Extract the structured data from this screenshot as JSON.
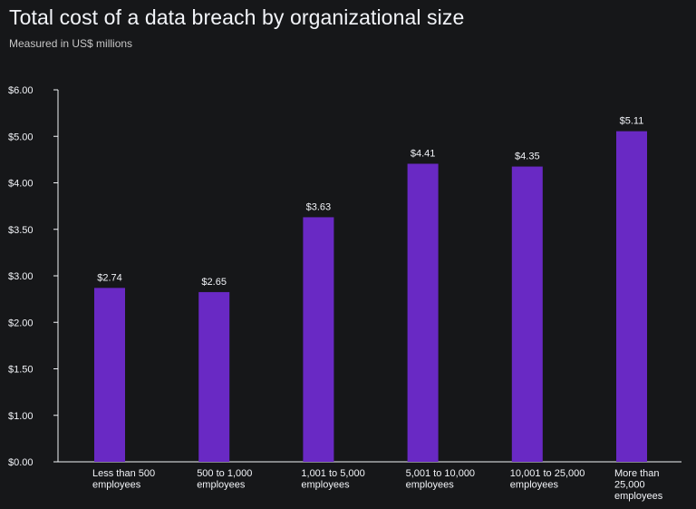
{
  "chart_data": {
    "type": "bar",
    "title": "Total cost of a data breach by organizational size",
    "subtitle": "Measured in US$ millions",
    "categories": [
      [
        "Less than 500",
        "employees"
      ],
      [
        "500 to 1,000",
        "employees"
      ],
      [
        "1,001 to 5,000",
        "employees"
      ],
      [
        "5,001 to 10,000",
        "employees"
      ],
      [
        "10,001 to 25,000",
        "employees"
      ],
      [
        "More than",
        "25,000",
        "employees"
      ]
    ],
    "values": [
      2.74,
      2.65,
      3.63,
      4.41,
      4.35,
      5.11
    ],
    "data_labels": [
      "$2.74",
      "$2.65",
      "$3.63",
      "$4.41",
      "$4.35",
      "$5.11"
    ],
    "y_ticks": [
      "$0.00",
      "$1.00",
      "$1.50",
      "$2.00",
      "$3.00",
      "$3.50",
      "$4.00",
      "$5.00",
      "$6.00"
    ],
    "bar_color": "#6929c4",
    "grid": false,
    "legend": "none"
  }
}
